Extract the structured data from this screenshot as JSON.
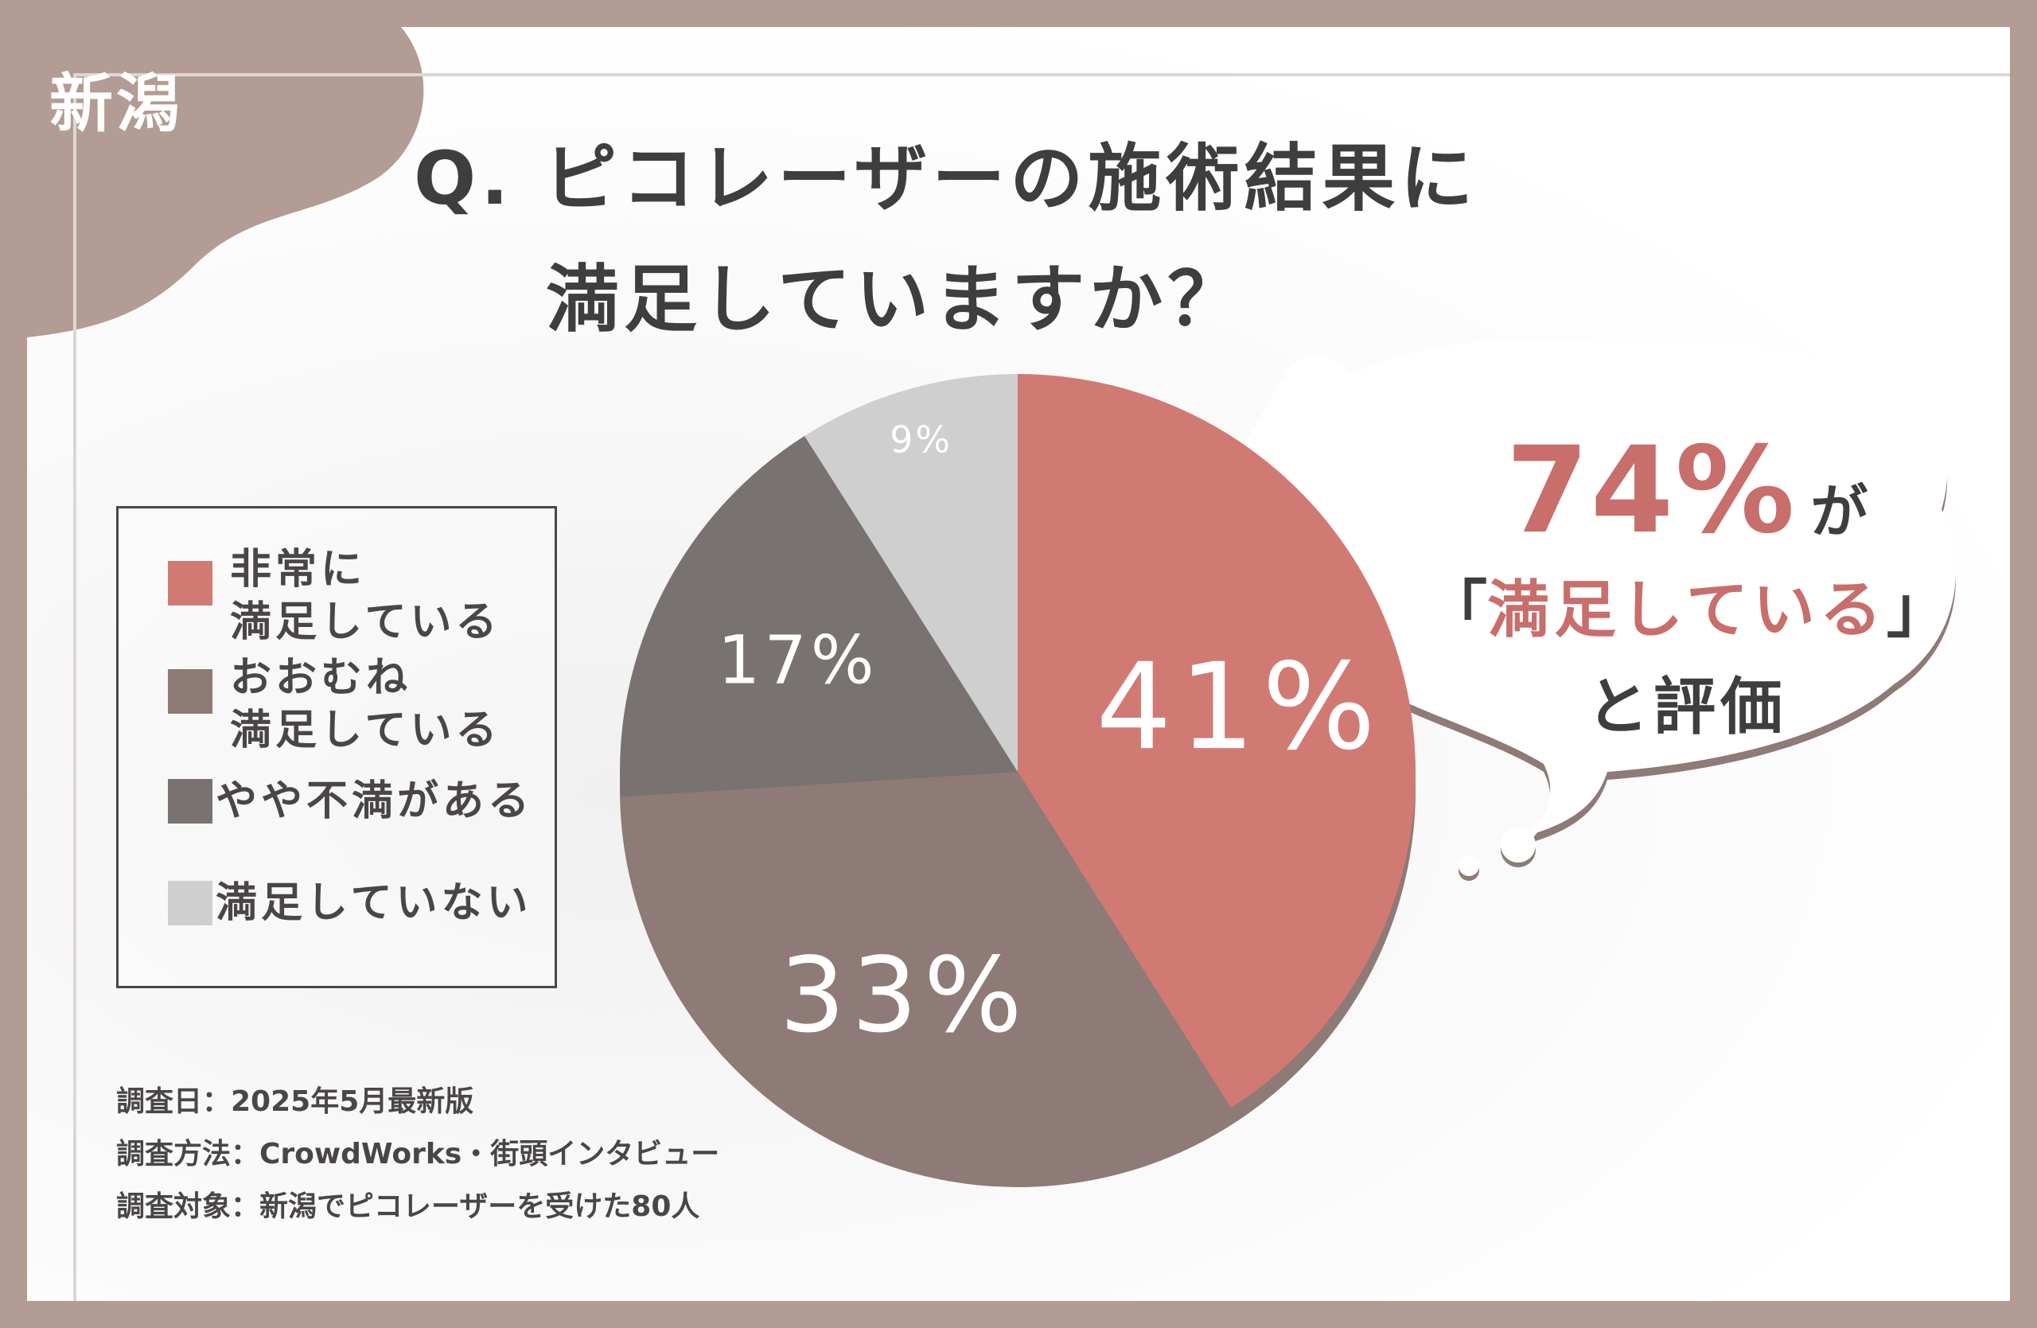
{
  "region_tag": "新潟",
  "title": {
    "line1": "Q. ピコレーザーの施術結果に",
    "line2": "満足していますか？"
  },
  "colors": {
    "very_satisfied": "#d17a74",
    "mostly_satisfied": "#8e7a76",
    "somewhat_dissatisfied": "#787270",
    "not_satisfied": "#cfcfcf",
    "frame_brown": "#b29c93",
    "accent_text": "#c86e6b"
  },
  "chart_data": {
    "type": "pie",
    "unit": "%",
    "slices": [
      {
        "key": "very_satisfied",
        "label": "非常に\n満足している",
        "value": 41,
        "display": "41%"
      },
      {
        "key": "mostly_satisfied",
        "label": "おおむね\n満足している",
        "value": 33,
        "display": "33%"
      },
      {
        "key": "somewhat_dissatisfied",
        "label": "やや不満がある",
        "value": 17,
        "display": "17%"
      },
      {
        "key": "not_satisfied",
        "label": "満足していない",
        "value": 9,
        "display": "9%"
      }
    ],
    "start_angle_deg": 0,
    "direction": "clockwise",
    "legend_position": "left"
  },
  "callout": {
    "percent": "74%",
    "particle": "が",
    "quote_open": "「",
    "quote_text": "満足している",
    "quote_close": "」",
    "evaluation": "と評価"
  },
  "notes": [
    "調査日：2025年5月最新版",
    "調査方法：CrowdWorks・街頭インタビュー",
    "調査対象：新潟でピコレーザーを受けた80人"
  ]
}
